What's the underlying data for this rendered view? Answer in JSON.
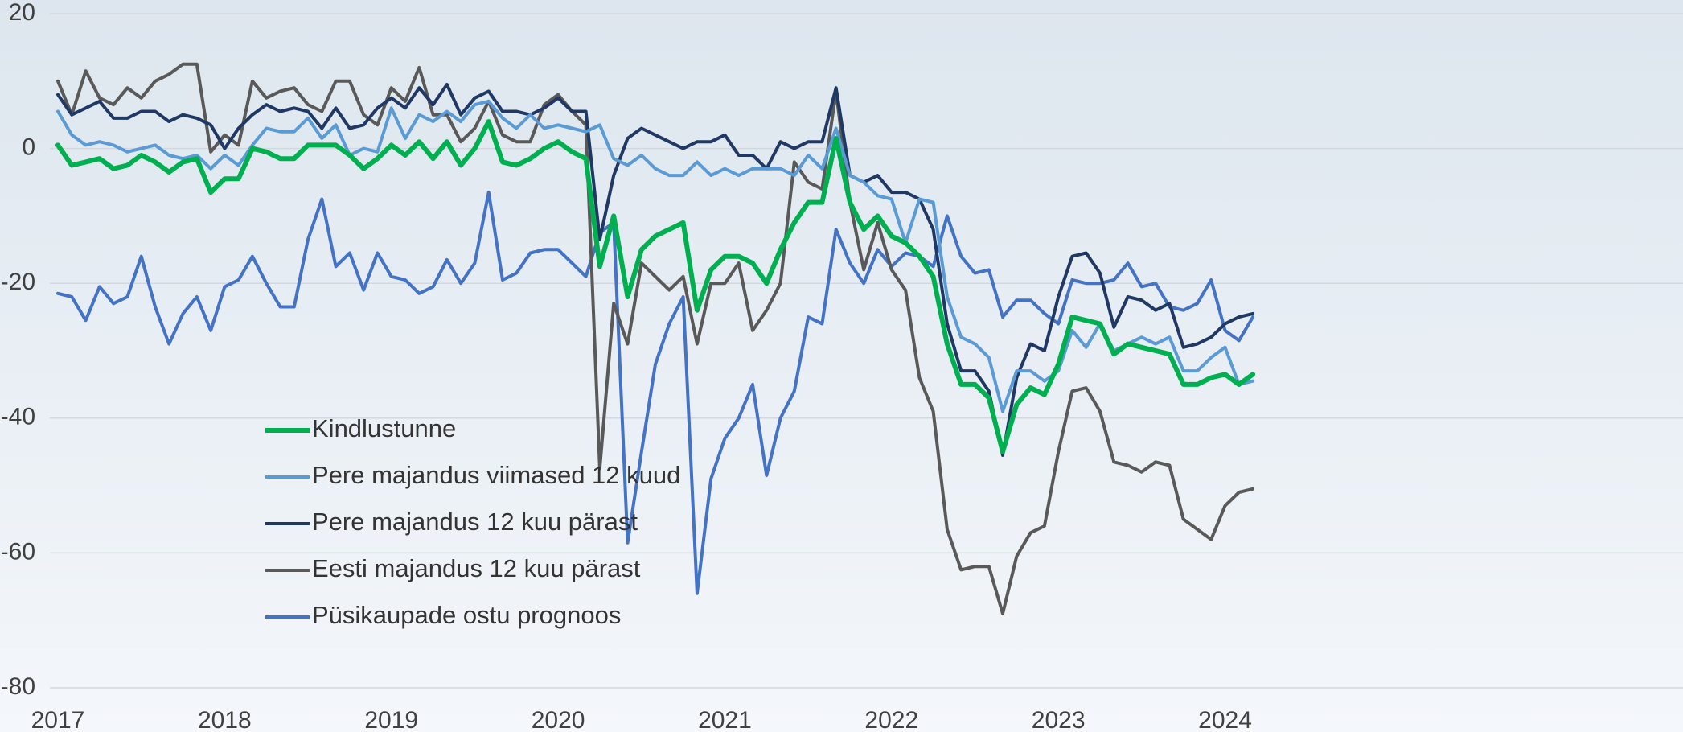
{
  "chart_data": {
    "type": "line",
    "categories": [
      "2017",
      null,
      null,
      null,
      null,
      null,
      null,
      null,
      null,
      null,
      null,
      null,
      "2018",
      null,
      null,
      null,
      null,
      null,
      null,
      null,
      null,
      null,
      null,
      null,
      "2019",
      null,
      null,
      null,
      null,
      null,
      null,
      null,
      null,
      null,
      null,
      null,
      "2020",
      null,
      null,
      null,
      null,
      null,
      null,
      null,
      null,
      null,
      null,
      null,
      "2021",
      null,
      null,
      null,
      null,
      null,
      null,
      null,
      null,
      null,
      null,
      null,
      "2022",
      null,
      null,
      null,
      null,
      null,
      null,
      null,
      null,
      null,
      null,
      null,
      "2023",
      null,
      null,
      null,
      null,
      null,
      null,
      null,
      null,
      null,
      null,
      null,
      "2024",
      null,
      null
    ],
    "ylim": [
      -80,
      20
    ],
    "yticks": [
      -80,
      -60,
      -40,
      -20,
      0,
      20
    ],
    "grid": true,
    "series": [
      {
        "name": "Kindlustunne",
        "color": "#00b050",
        "values": [
          0.5,
          -2.5,
          -2,
          -1.5,
          -3,
          -2.5,
          -1,
          -2,
          -3.5,
          -2,
          -1.5,
          -6.5,
          -4.5,
          -4.5,
          0,
          -0.5,
          -1.5,
          -1.5,
          0.5,
          0.5,
          0.5,
          -1,
          -3,
          -1.5,
          0.5,
          -1,
          1,
          -1.5,
          1,
          -2.5,
          0,
          4,
          -2,
          -2.5,
          -1.5,
          0,
          1,
          -0.5,
          -1.5,
          -17.5,
          -10,
          -22,
          -15,
          -13,
          -12,
          -11,
          -24,
          -18,
          -16,
          -16,
          -17,
          -20,
          -15,
          -11,
          -8,
          -8,
          1.5,
          -8,
          -12,
          -10,
          -13,
          -14,
          -16,
          -19,
          -29,
          -35,
          -35,
          -37,
          -45,
          -38,
          -35.5,
          -36.5,
          -32,
          -25,
          -25.5,
          -26,
          -30.5,
          -29,
          -29.5,
          -30,
          -30.5,
          -35,
          -35,
          -34,
          -33.5,
          -35,
          -33.5
        ]
      },
      {
        "name": "Pere majandus viimased 12 kuud",
        "color": "#5b9bd5",
        "values": [
          5.5,
          2,
          0.5,
          1,
          0.5,
          -0.5,
          0,
          0.5,
          -1,
          -1.5,
          -1,
          -3,
          -1,
          -2.5,
          0.5,
          3,
          2.5,
          2.5,
          4.5,
          1.5,
          3.5,
          -1,
          0,
          -0.5,
          6,
          1.5,
          5,
          4,
          5.5,
          4,
          6.5,
          7,
          4.5,
          3,
          5,
          3,
          3.5,
          3,
          2.5,
          3.5,
          -1.5,
          -2.5,
          -1,
          -3,
          -4,
          -4,
          -2,
          -4,
          -3,
          -4,
          -3,
          -3,
          -3,
          -4,
          -1,
          -3,
          3,
          -4,
          -5,
          -7,
          -7.5,
          -14,
          -7.5,
          -8,
          -22,
          -28,
          -29,
          -31,
          -39,
          -33,
          -33,
          -34.5,
          -33,
          -27,
          -29.5,
          -26,
          -30,
          -29,
          -28,
          -29,
          -28,
          -33,
          -33,
          -31,
          -29.5,
          -35,
          -34.5
        ]
      },
      {
        "name": "Pere majandus 12 kuu pärast",
        "color": "#203864",
        "values": [
          8,
          5,
          6,
          7,
          4.5,
          4.5,
          5.5,
          5.5,
          4,
          5,
          4.5,
          3.5,
          0,
          3,
          5,
          6.5,
          5.5,
          6,
          5.5,
          3,
          6,
          3,
          3.5,
          6,
          7.5,
          6,
          9,
          6.5,
          9.5,
          5,
          7.5,
          8.5,
          5.5,
          5.5,
          5,
          6,
          7.5,
          5.5,
          5.5,
          -13.5,
          -4,
          1.5,
          3,
          2,
          1,
          0,
          1,
          1,
          2,
          -1,
          -1,
          -3,
          1,
          0,
          1,
          1,
          9,
          -4,
          -5,
          -4,
          -6.5,
          -6.5,
          -7.5,
          -12,
          -26,
          -33,
          -33,
          -36,
          -45.5,
          -34,
          -29,
          -30,
          -22,
          -16,
          -15.5,
          -18.5,
          -26.5,
          -22,
          -22.5,
          -24,
          -23,
          -29.5,
          -29,
          -28,
          -26,
          -25,
          -24.5
        ]
      },
      {
        "name": "Eesti majandus 12 kuu pärast",
        "color": "#595959",
        "values": [
          10,
          5,
          11.5,
          7.5,
          6.5,
          9,
          7.5,
          10,
          11,
          12.5,
          12.5,
          -0.5,
          2,
          0.5,
          10,
          7.5,
          8.5,
          9,
          6.5,
          5.5,
          10,
          10,
          5,
          3.5,
          9,
          7,
          12,
          5,
          5,
          1,
          3,
          7,
          2,
          1,
          1,
          6.5,
          8,
          5.5,
          3.5,
          -47.5,
          -23,
          -29,
          -17,
          -19,
          -21,
          -19,
          -29,
          -20,
          -20,
          -17,
          -27,
          -24,
          -20,
          -2,
          -5,
          -6,
          8.5,
          -8,
          -18,
          -11,
          -18,
          -21,
          -34,
          -39,
          -56.5,
          -62.5,
          -62,
          -62,
          -69,
          -60.5,
          -57,
          -56,
          -45,
          -36,
          -35.5,
          -39,
          -46.5,
          -47,
          -48,
          -46.5,
          -47,
          -55,
          -56.5,
          -58,
          -53,
          -51,
          -50.5
        ]
      },
      {
        "name": "Püsikaupade ostu prognoos",
        "color": "#4472c4",
        "values": [
          -21.5,
          -22,
          -25.5,
          -20.5,
          -23,
          -22,
          -16,
          -23.5,
          -29,
          -24.5,
          -22,
          -27,
          -20.5,
          -19.5,
          -16,
          -20,
          -23.5,
          -23.5,
          -13.5,
          -7.5,
          -17.5,
          -15.5,
          -21,
          -15.5,
          -19,
          -19.5,
          -21.5,
          -20.5,
          -16.5,
          -20,
          -17,
          -6.5,
          -19.5,
          -18.5,
          -15.5,
          -15,
          -15,
          -17,
          -19,
          -12.5,
          -11,
          -58.5,
          -45,
          -32,
          -26,
          -22,
          -66,
          -49,
          -43,
          -40,
          -35,
          -48.5,
          -40,
          -36,
          -25,
          -26,
          -12,
          -17,
          -20,
          -15,
          -17.5,
          -15.5,
          -16,
          -17.5,
          -10,
          -16,
          -18.5,
          -18,
          -25,
          -22.5,
          -22.5,
          -24.5,
          -26,
          -19.5,
          -20,
          -20,
          -19.5,
          -17,
          -20.5,
          -20,
          -23.5,
          -24,
          -23,
          -19.5,
          -27,
          -28.5,
          -25
        ]
      }
    ]
  }
}
